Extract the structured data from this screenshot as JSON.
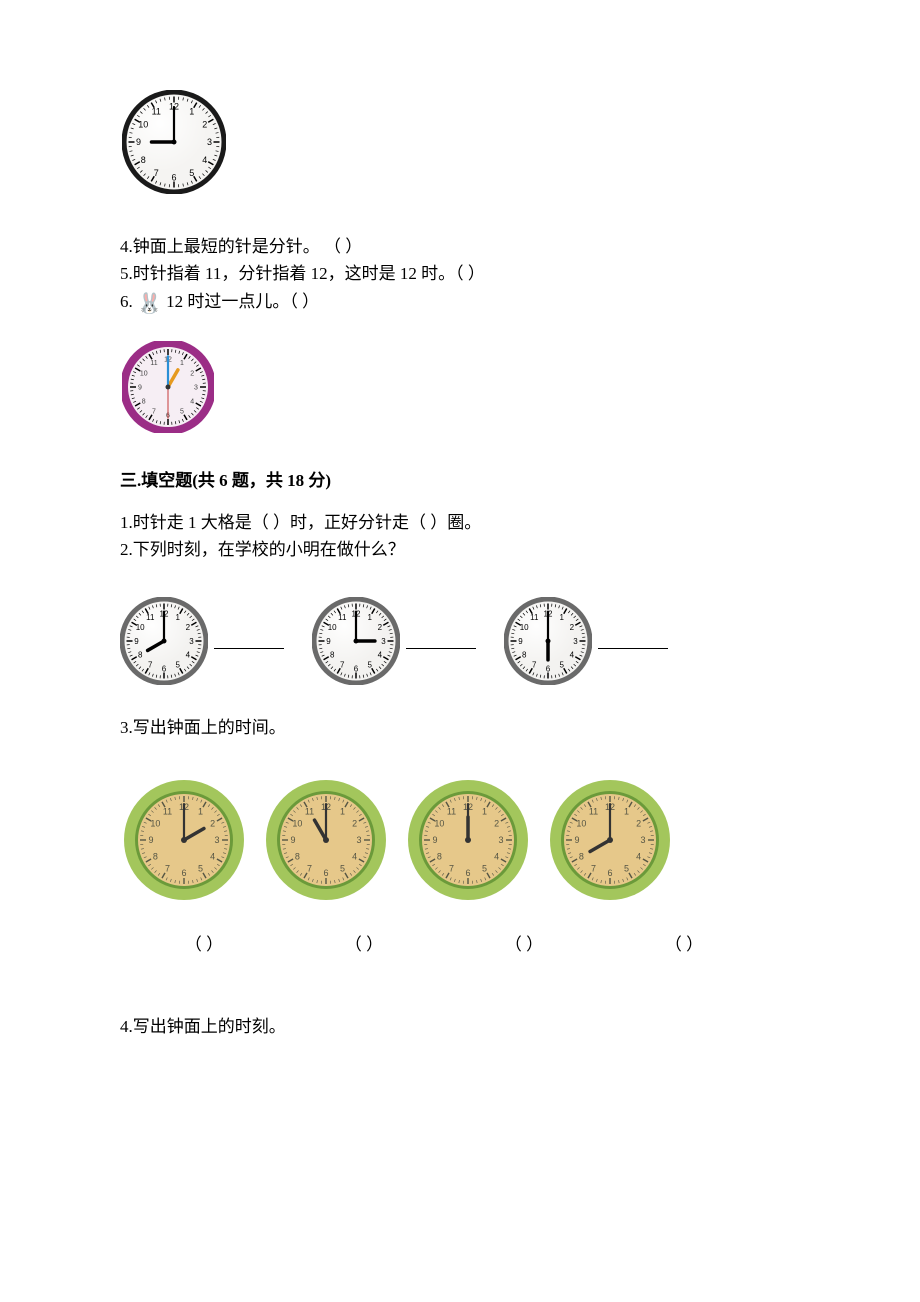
{
  "clock_top": {
    "radius": 50,
    "border_color": "#1a1a1a",
    "border_width": 5,
    "face_color": "#f5f4f2",
    "tick_color": "#000000",
    "hand_color": "#000000",
    "hour": 9,
    "minute": 0,
    "nums": [
      "12",
      "1",
      "2",
      "3",
      "4",
      "5",
      "6",
      "7",
      "8",
      "9",
      "10",
      "11"
    ],
    "num_fontsize": 9
  },
  "q4": "4.钟面上最短的针是分针。   （    ）",
  "q5": "5.时针指着 11，分针指着 12，这时是 12 时。（    ）",
  "q6": "6.　 12 时过一点儿。（    ）",
  "rabbit_emoji": "🐰",
  "clock_purple": {
    "radius": 44,
    "border_color": "#9b2d86",
    "border_width": 8,
    "face_color": "#f6eef4",
    "tick_color": "#000000",
    "hand_color_hour": "#e69a1f",
    "hand_color_min": "#2a8fd6",
    "hand_color_sec": "#c73a3a",
    "hour": 1,
    "minute": 0,
    "nums": [
      "12",
      "1",
      "2",
      "3",
      "4",
      "5",
      "6",
      "7",
      "8",
      "9",
      "10",
      "11"
    ],
    "num_fontsize": 7
  },
  "section3_title": "三.填空题(共 6 题，共 18 分)",
  "q3_1": "1.时针走 1 大格是（    ）时，正好分针走（    ）圈。",
  "q3_2": "2.下列时刻，在学校的小明在做什么？",
  "clocks_row2": [
    {
      "hour": 8,
      "minute": 0
    },
    {
      "hour": 3,
      "minute": 0
    },
    {
      "hour": 6,
      "minute": 0
    }
  ],
  "clock_row2_style": {
    "radius": 42,
    "border_color": "#6a6a6a",
    "border_width": 5,
    "face_color": "#f3f2f0",
    "tick_color": "#000000",
    "hand_color": "#000000",
    "nums": [
      "12",
      "1",
      "2",
      "3",
      "4",
      "5",
      "6",
      "7",
      "8",
      "9",
      "10",
      "11"
    ],
    "num_fontsize": 8
  },
  "q3_3": "3.写出钟面上的时间。",
  "green_clocks": [
    {
      "hour": 2,
      "minute": 0
    },
    {
      "hour": 11,
      "minute": 0
    },
    {
      "hour": 12,
      "minute": 0
    },
    {
      "hour": 8,
      "minute": 0
    }
  ],
  "green_style": {
    "radius": 60,
    "outer_color": "#a3c65c",
    "outer_width": 14,
    "inner_rim_color": "#6b9a3a",
    "inner_rim_width": 3,
    "face_color": "#e6c88a",
    "tick_color": "#555544",
    "hand_color": "#333333",
    "center_color": "#333333",
    "nums": [
      "12",
      "1",
      "2",
      "3",
      "4",
      "5",
      "6",
      "7",
      "8",
      "9",
      "10",
      "11"
    ],
    "num_fontsize": 9,
    "num_color": "#555544"
  },
  "paren_labels": [
    "（    ）",
    "（    ）",
    "（    ）",
    "（    ）"
  ],
  "q3_4": "4.写出钟面上的时刻。"
}
